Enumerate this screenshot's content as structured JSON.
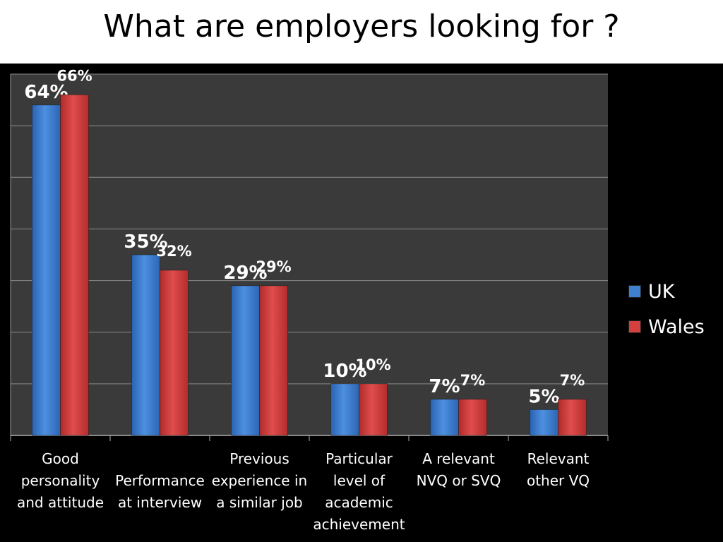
{
  "chart_data": {
    "type": "bar",
    "title": "What are employers looking for ?",
    "categories": [
      "Good personality and attitude",
      "Performance at interview",
      "Previous experience in a similar job",
      "Particular level of academic achievement",
      "A relevant NVQ or SVQ",
      "Relevant other VQ"
    ],
    "category_lines": [
      [
        "Good",
        "personality",
        "and attitude"
      ],
      [
        "",
        "Performance",
        "at interview"
      ],
      [
        "Previous",
        "experience in",
        "a similar job"
      ],
      [
        "Particular",
        "level of",
        "academic",
        "achievement"
      ],
      [
        "A relevant",
        "NVQ or SVQ"
      ],
      [
        "Relevant",
        "other VQ"
      ]
    ],
    "series": [
      {
        "name": "UK",
        "values": [
          64,
          35,
          29,
          10,
          7,
          5
        ],
        "labels": [
          "64%",
          "35%",
          "29%",
          "10%",
          "7%",
          "5%"
        ],
        "color": "#3f7fd0"
      },
      {
        "name": "Wales",
        "values": [
          66,
          32,
          29,
          10,
          7,
          7
        ],
        "labels": [
          "66%",
          "32%",
          "29%",
          "10%",
          "7%",
          "7%"
        ],
        "color": "#d43f3f"
      }
    ],
    "ylim": [
      0,
      70
    ],
    "grid": true,
    "legend_position": "right",
    "plot_background": "#3a3a3a"
  }
}
